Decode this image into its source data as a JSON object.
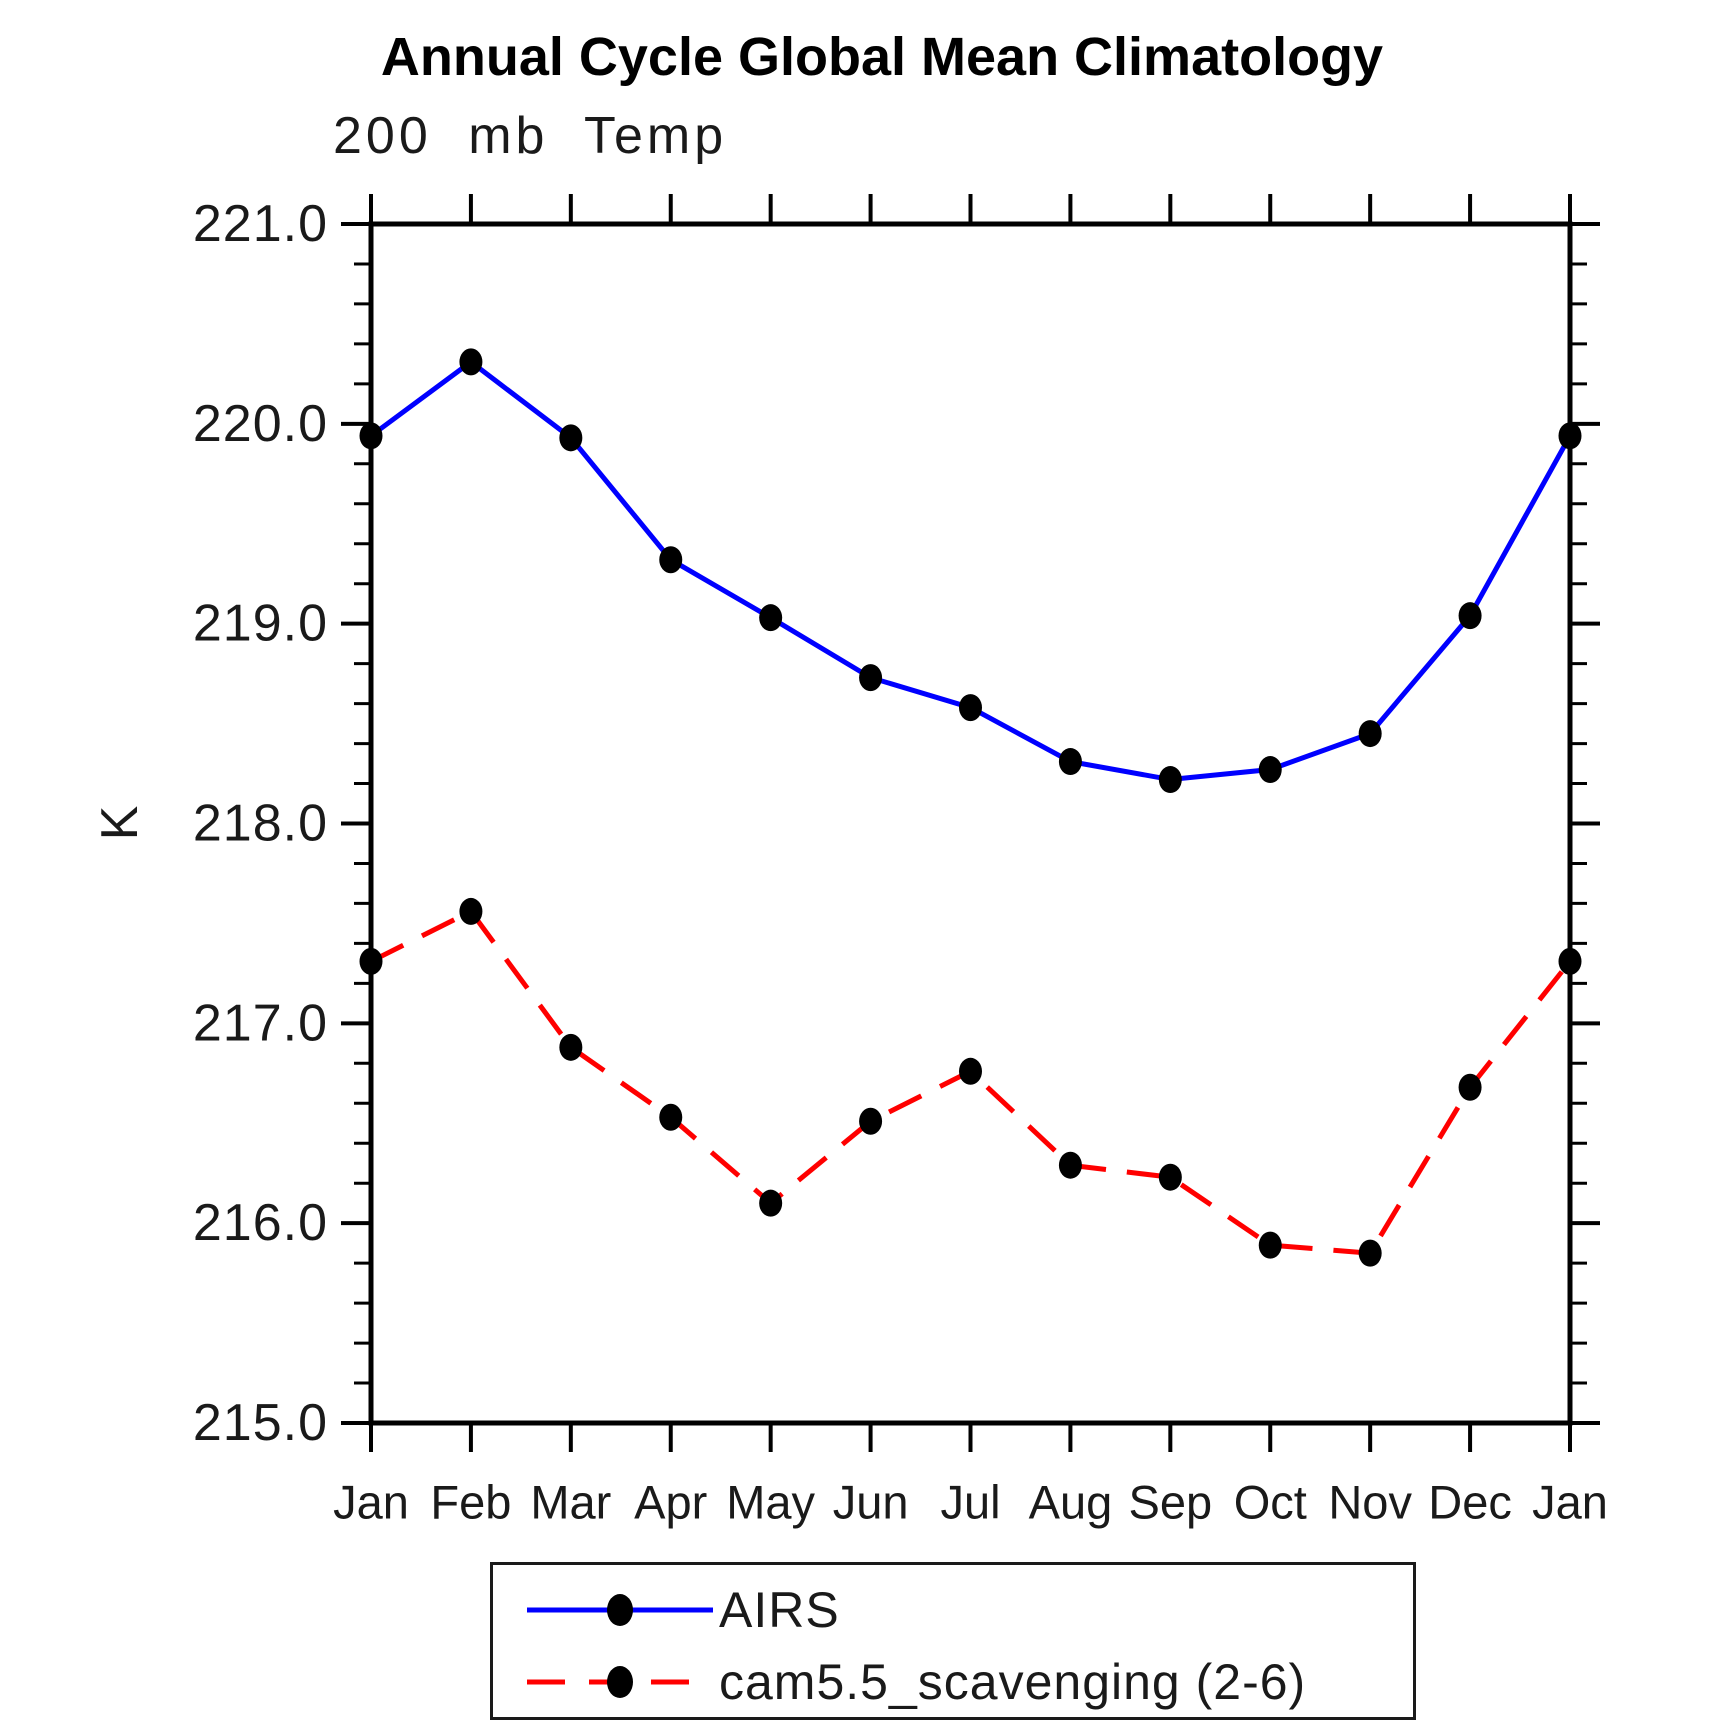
{
  "title": "Annual Cycle Global Mean Climatology",
  "subtitle": "200 mb Temp",
  "y_axis": {
    "title": "K",
    "min": 215.0,
    "max": 221.0,
    "major_step": 1.0,
    "minor_step": 0.2,
    "tick_labels": [
      "221.0",
      "220.0",
      "219.0",
      "218.0",
      "217.0",
      "216.0",
      "215.0"
    ]
  },
  "x_axis": {
    "tick_labels": [
      "Jan",
      "Feb",
      "Mar",
      "Apr",
      "May",
      "Jun",
      "Jul",
      "Aug",
      "Sep",
      "Oct",
      "Nov",
      "Dec",
      "Jan"
    ]
  },
  "legend": {
    "entries": [
      {
        "label": "AIRS"
      },
      {
        "label": "cam5.5_scavenging (2-6)"
      }
    ]
  },
  "colors": {
    "airs_line": "#0000ff",
    "cam_line": "#ff0000",
    "marker": "#000000",
    "axis": "#000000"
  },
  "chart_data": {
    "type": "line",
    "title": "Annual Cycle Global Mean Climatology",
    "subtitle": "200 mb Temp",
    "ylabel": "K",
    "xlabel": "",
    "ylim": [
      215.0,
      221.0
    ],
    "ytick_major": 1.0,
    "ytick_minor": 0.2,
    "grid": false,
    "legend_position": "bottom",
    "categories": [
      "Jan",
      "Feb",
      "Mar",
      "Apr",
      "May",
      "Jun",
      "Jul",
      "Aug",
      "Sep",
      "Oct",
      "Nov",
      "Dec",
      "Jan"
    ],
    "series": [
      {
        "name": "AIRS",
        "color": "#0000ff",
        "line_style": "solid",
        "marker": "filled-circle",
        "marker_color": "#000000",
        "values": [
          219.94,
          220.31,
          219.93,
          219.32,
          219.03,
          218.73,
          218.58,
          218.31,
          218.22,
          218.27,
          218.45,
          219.04,
          219.94
        ]
      },
      {
        "name": "cam5.5_scavenging (2-6)",
        "color": "#ff0000",
        "line_style": "dashed",
        "marker": "filled-circle",
        "marker_color": "#000000",
        "values": [
          217.31,
          217.56,
          216.88,
          216.53,
          216.1,
          216.51,
          216.76,
          216.29,
          216.23,
          215.89,
          215.85,
          216.68,
          217.31
        ]
      }
    ]
  }
}
